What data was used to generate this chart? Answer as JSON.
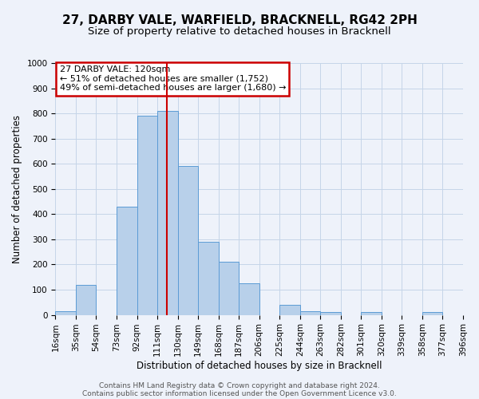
{
  "title": "27, DARBY VALE, WARFIELD, BRACKNELL, RG42 2PH",
  "subtitle": "Size of property relative to detached houses in Bracknell",
  "xlabel": "Distribution of detached houses by size in Bracknell",
  "ylabel": "Number of detached properties",
  "bar_color": "#b8d0ea",
  "bar_edge_color": "#5b9bd5",
  "background_color": "#eef2fa",
  "grid_color": "#c5d5e8",
  "annotation_text": "27 DARBY VALE: 120sqm\n← 51% of detached houses are smaller (1,752)\n49% of semi-detached houses are larger (1,680) →",
  "annotation_box_color": "white",
  "annotation_box_edge_color": "#cc0000",
  "vline_x": 120,
  "vline_color": "#cc0000",
  "bin_edges": [
    16,
    35,
    54,
    73,
    92,
    111,
    130,
    149,
    168,
    187,
    206,
    225,
    244,
    263,
    282,
    301,
    320,
    339,
    358,
    377,
    396
  ],
  "bar_heights": [
    15,
    120,
    0,
    430,
    790,
    810,
    590,
    290,
    210,
    125,
    0,
    40,
    15,
    10,
    0,
    10,
    0,
    0,
    10,
    0
  ],
  "xlim_left": 16,
  "xlim_right": 396,
  "ylim": [
    0,
    1000
  ],
  "yticks": [
    0,
    100,
    200,
    300,
    400,
    500,
    600,
    700,
    800,
    900,
    1000
  ],
  "xtick_labels": [
    "16sqm",
    "35sqm",
    "54sqm",
    "73sqm",
    "92sqm",
    "111sqm",
    "130sqm",
    "149sqm",
    "168sqm",
    "187sqm",
    "206sqm",
    "225sqm",
    "244sqm",
    "263sqm",
    "282sqm",
    "301sqm",
    "320sqm",
    "339sqm",
    "358sqm",
    "377sqm",
    "396sqm"
  ],
  "footer_lines": [
    "Contains HM Land Registry data © Crown copyright and database right 2024.",
    "Contains public sector information licensed under the Open Government Licence v3.0."
  ],
  "title_fontsize": 11,
  "subtitle_fontsize": 9.5,
  "axis_label_fontsize": 8.5,
  "tick_fontsize": 7.5,
  "footer_fontsize": 6.5,
  "ann_fontsize": 8
}
